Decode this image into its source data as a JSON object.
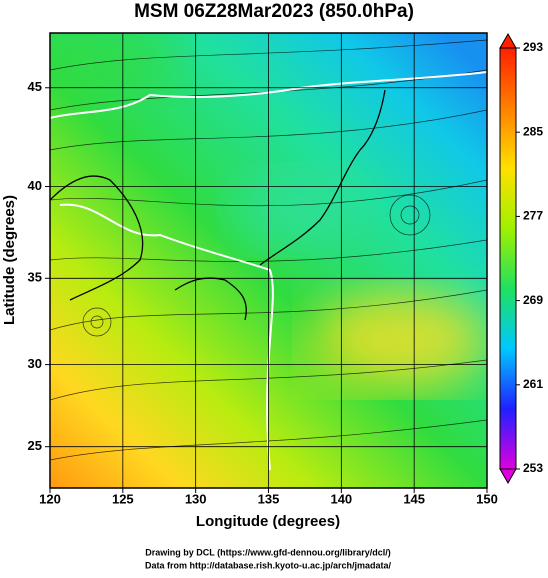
{
  "chart_data": {
    "type": "map",
    "title": "MSM 06Z28Mar2023 (850.0hPa)",
    "xlabel": "Longitude (degrees)",
    "ylabel": "Latitude  (degrees)",
    "xlim": [
      120,
      150
    ],
    "xticks": [
      120,
      125,
      130,
      135,
      140,
      145,
      150
    ],
    "ylim": [
      22.4,
      47.6
    ],
    "yticks": [
      25,
      30,
      35,
      40,
      45
    ],
    "projection": "mercator",
    "colorbar": {
      "lim": [
        253,
        293
      ],
      "ticks": [
        253,
        261,
        269,
        277,
        285,
        293
      ],
      "colors": [
        "#e000e0",
        "#2020ff",
        "#00c8ff",
        "#20e060",
        "#a0f000",
        "#ffe000",
        "#ff8000",
        "#ff2000"
      ]
    },
    "footer": [
      "Drawing by DCL (https://www.gfd-dennou.org/library/dcl/)",
      "Data from http://database.rish.kyoto-u.ac.jp/arch/jmadata/"
    ]
  }
}
